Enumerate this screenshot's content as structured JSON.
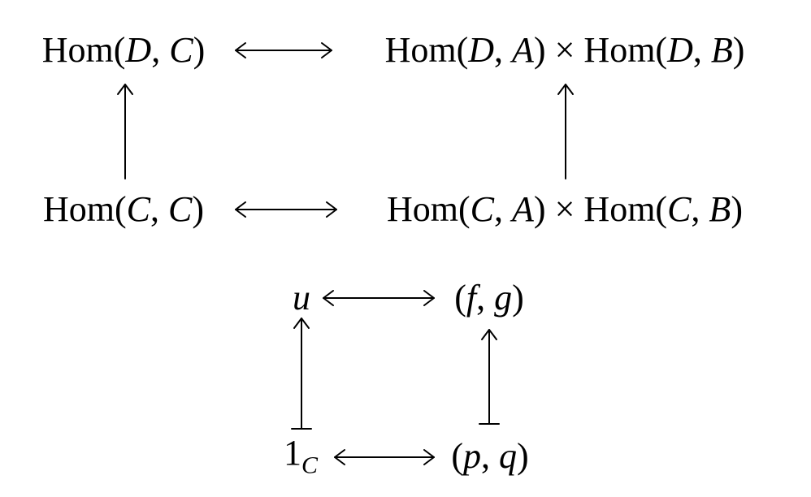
{
  "diagram": {
    "top_square": {
      "top_left": {
        "fn": "Hom",
        "args": [
          "D",
          "C"
        ]
      },
      "top_right": {
        "left": {
          "fn": "Hom",
          "args": [
            "D",
            "A"
          ]
        },
        "times": "×",
        "right": {
          "fn": "Hom",
          "args": [
            "D",
            "B"
          ]
        }
      },
      "bottom_left": {
        "fn": "Hom",
        "args": [
          "C",
          "C"
        ]
      },
      "bottom_right": {
        "left": {
          "fn": "Hom",
          "args": [
            "C",
            "A"
          ]
        },
        "times": "×",
        "right": {
          "fn": "Hom",
          "args": [
            "C",
            "B"
          ]
        }
      }
    },
    "bottom_square": {
      "top_left": "u",
      "top_right": {
        "args": [
          "f",
          "g"
        ]
      },
      "bottom_left": {
        "base": "1",
        "sub": "C"
      },
      "bottom_right": {
        "args": [
          "p",
          "q"
        ]
      }
    }
  }
}
